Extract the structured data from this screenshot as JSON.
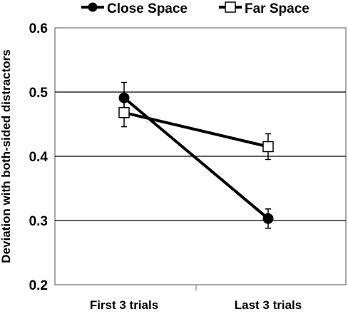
{
  "chart_data": {
    "type": "line",
    "title": "",
    "xlabel": "",
    "ylabel": "Deviation with both-sided distractors",
    "categories": [
      "First 3 trials",
      "Last 3 trials"
    ],
    "ylim": [
      0.2,
      0.6
    ],
    "yticks": [
      "0.2",
      "0.3",
      "0.4",
      "0.5",
      "0.6"
    ],
    "grid": "horizontal",
    "legend": "top",
    "series": [
      {
        "name": "Close Space",
        "marker": "filled-circle",
        "color": "#000000",
        "values": [
          0.491,
          0.303
        ],
        "error": [
          0.024,
          0.015
        ]
      },
      {
        "name": "Far Space",
        "marker": "open-square",
        "color": "#000000",
        "values": [
          0.468,
          0.415
        ],
        "error": [
          0.022,
          0.02
        ]
      }
    ]
  }
}
